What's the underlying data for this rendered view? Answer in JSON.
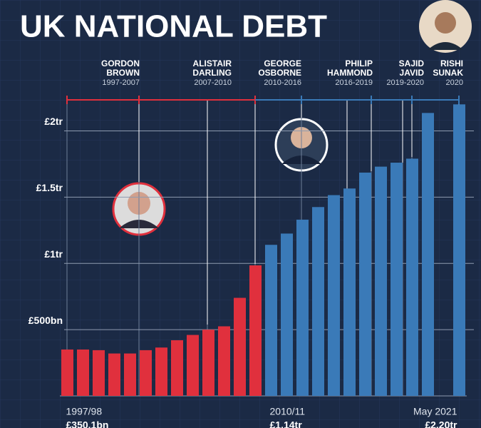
{
  "chart_data": {
    "type": "bar",
    "title": "UK NATIONAL DEBT",
    "periods": [
      {
        "name": [
          "GORDON",
          "BROWN"
        ],
        "years": "1997-2007",
        "color": "#e0303d"
      },
      {
        "name": [
          "ALISTAIR",
          "DARLING"
        ],
        "years": "2007-2010",
        "color": "#e0303d"
      },
      {
        "name": [
          "GEORGE",
          "OSBORNE"
        ],
        "years": "2010-2016",
        "color": "#3a7ab8"
      },
      {
        "name": [
          "PHILIP",
          "HAMMOND"
        ],
        "years": "2016-2019",
        "color": "#3a7ab8"
      },
      {
        "name": [
          "SAJID",
          "JAVID"
        ],
        "years": "2019-2020",
        "color": "#3a7ab8"
      },
      {
        "name": [
          "RISHI",
          "SUNAK"
        ],
        "years": "2020",
        "color": "#3a7ab8"
      }
    ],
    "categories": [
      "1997/98",
      null,
      null,
      null,
      null,
      null,
      null,
      null,
      null,
      null,
      null,
      null,
      null,
      "2010/11",
      null,
      null,
      null,
      null,
      null,
      null,
      null,
      null,
      null,
      null,
      null,
      "May 2021"
    ],
    "values": [
      350.1,
      350,
      345,
      320,
      320,
      345,
      365,
      420,
      460,
      500,
      525,
      740,
      985,
      1140,
      1225,
      1330,
      1425,
      1515,
      1565,
      1685,
      1730,
      1760,
      1790,
      2135,
      null,
      2200
    ],
    "value_labels": [
      "£350.1bn",
      null,
      null,
      null,
      null,
      null,
      null,
      null,
      null,
      null,
      null,
      null,
      null,
      "£1.14tr",
      null,
      null,
      null,
      null,
      null,
      null,
      null,
      null,
      null,
      null,
      null,
      "£2.20tr"
    ],
    "colors": [
      "#e0303d",
      "#e0303d",
      "#e0303d",
      "#e0303d",
      "#e0303d",
      "#e0303d",
      "#e0303d",
      "#e0303d",
      "#e0303d",
      "#e0303d",
      "#e0303d",
      "#e0303d",
      "#e0303d",
      "#3a7ab8",
      "#3a7ab8",
      "#3a7ab8",
      "#3a7ab8",
      "#3a7ab8",
      "#3a7ab8",
      "#3a7ab8",
      "#3a7ab8",
      "#3a7ab8",
      "#3a7ab8",
      "#3a7ab8",
      "#3a7ab8",
      "#3a7ab8"
    ],
    "ylim": [
      0,
      2250
    ],
    "yticks": [
      {
        "value": 500,
        "label": "£500bn"
      },
      {
        "value": 1000,
        "label": "£1tr"
      },
      {
        "value": 1500,
        "label": "£1.5tr"
      },
      {
        "value": 2000,
        "label": "£2tr"
      }
    ],
    "grid": true
  }
}
